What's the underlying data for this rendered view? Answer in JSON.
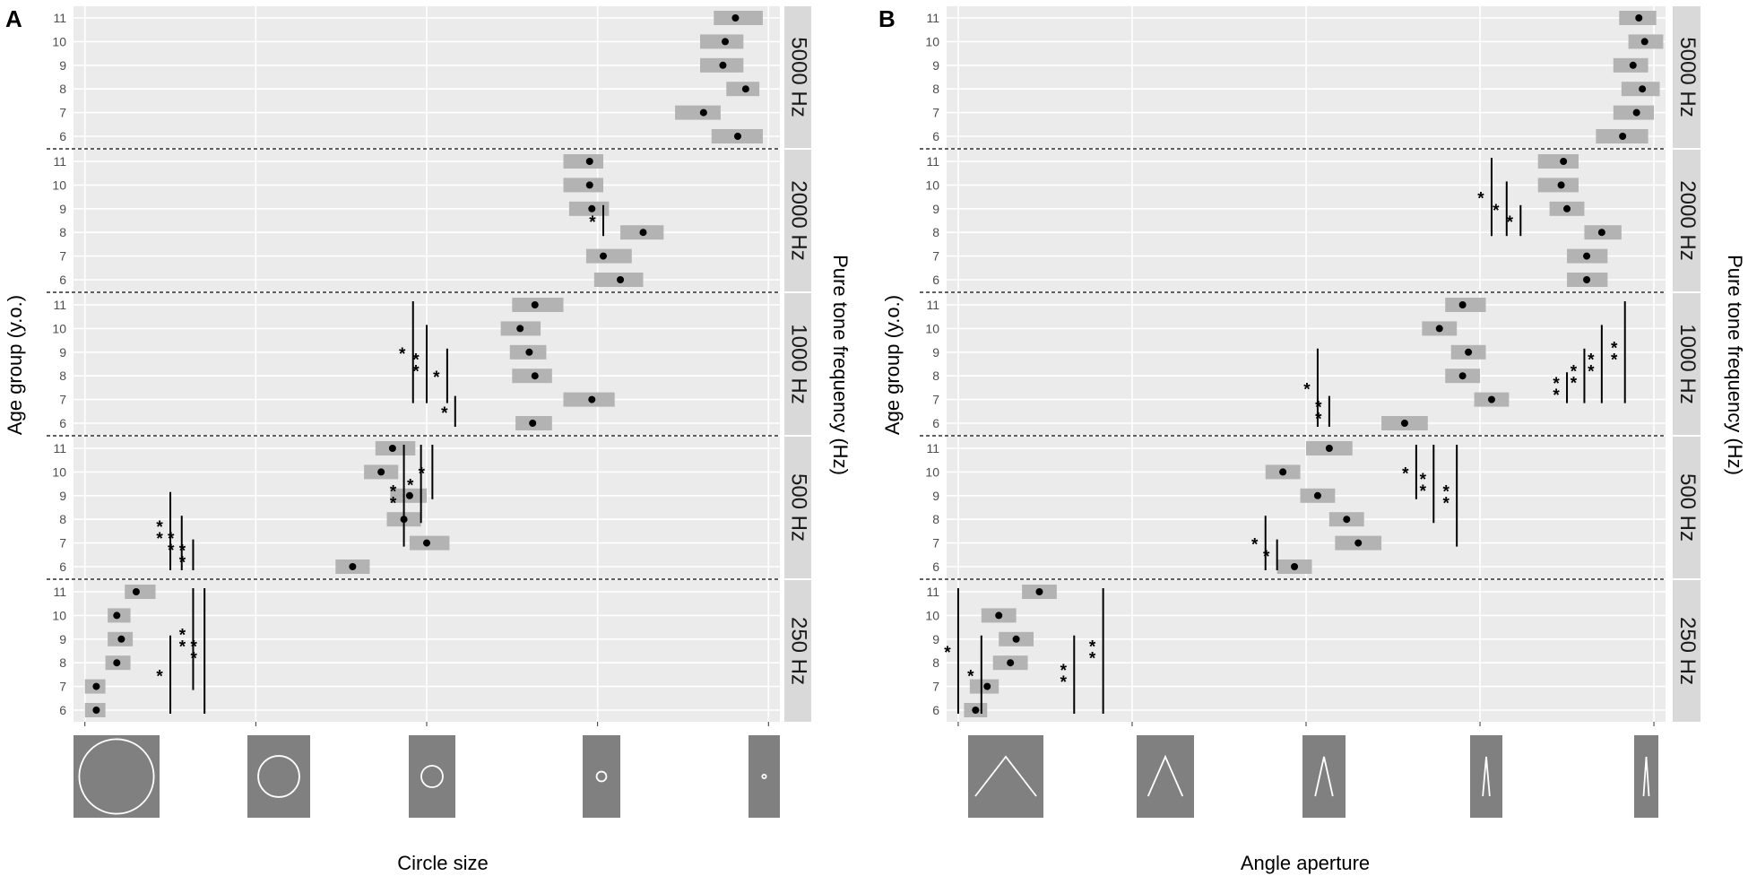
{
  "chart_data": [
    {
      "type": "range",
      "panel_label": "A",
      "xlabel": "Circle size",
      "ylabel": "Age group (y.o.)",
      "facet_label": "Pure tone frequency (Hz)",
      "x_range": [
        0,
        6.2
      ],
      "age_groups": [
        "6",
        "7",
        "8",
        "9",
        "10",
        "11"
      ],
      "stimuli": [
        {
          "kind": "circle",
          "level": 0.55
        },
        {
          "kind": "circle",
          "level": 2.6
        },
        {
          "kind": "circle",
          "level": 4.55
        },
        {
          "kind": "circle",
          "level": 6.8
        },
        {
          "kind": "circle",
          "level": 8.4
        }
      ],
      "facets": [
        {
          "label": "5000 Hz",
          "rows": [
            {
              "age": "6",
              "mean": 5.83,
              "lo": 5.6,
              "hi": 6.05
            },
            {
              "age": "7",
              "mean": 5.53,
              "lo": 5.28,
              "hi": 5.68
            },
            {
              "age": "8",
              "mean": 5.9,
              "lo": 5.73,
              "hi": 6.02
            },
            {
              "age": "9",
              "mean": 5.7,
              "lo": 5.5,
              "hi": 5.88
            },
            {
              "age": "10",
              "mean": 5.72,
              "lo": 5.5,
              "hi": 5.88
            },
            {
              "age": "11",
              "mean": 5.81,
              "lo": 5.62,
              "hi": 6.05
            }
          ],
          "sig": []
        },
        {
          "label": "2000 Hz",
          "rows": [
            {
              "age": "6",
              "mean": 4.8,
              "lo": 4.57,
              "hi": 5.0
            },
            {
              "age": "7",
              "mean": 4.65,
              "lo": 4.5,
              "hi": 4.9
            },
            {
              "age": "8",
              "mean": 5.0,
              "lo": 4.8,
              "hi": 5.18
            },
            {
              "age": "9",
              "mean": 4.55,
              "lo": 4.35,
              "hi": 4.7
            },
            {
              "age": "10",
              "mean": 4.53,
              "lo": 4.3,
              "hi": 4.65
            },
            {
              "age": "11",
              "mean": 4.53,
              "lo": 4.3,
              "hi": 4.65
            }
          ],
          "sig": [
            {
              "from": "8",
              "to": "9",
              "x": 4.65,
              "label": "*"
            }
          ]
        },
        {
          "label": "1000 Hz",
          "rows": [
            {
              "age": "6",
              "mean": 4.03,
              "lo": 3.88,
              "hi": 4.2
            },
            {
              "age": "7",
              "mean": 4.55,
              "lo": 4.3,
              "hi": 4.75
            },
            {
              "age": "8",
              "mean": 4.05,
              "lo": 3.85,
              "hi": 4.2
            },
            {
              "age": "9",
              "mean": 4.0,
              "lo": 3.83,
              "hi": 4.15
            },
            {
              "age": "10",
              "mean": 3.92,
              "lo": 3.75,
              "hi": 4.1
            },
            {
              "age": "11",
              "mean": 4.05,
              "lo": 3.85,
              "hi": 4.3
            }
          ],
          "sig": [
            {
              "from": "6",
              "to": "7",
              "x": 3.35,
              "label": "*"
            },
            {
              "from": "7",
              "to": "9",
              "x": 3.28,
              "label": "*"
            },
            {
              "from": "7",
              "to": "10",
              "x": 3.1,
              "label": "**"
            },
            {
              "from": "7",
              "to": "11",
              "x": 2.98,
              "label": "*"
            }
          ]
        },
        {
          "label": "500 Hz",
          "rows": [
            {
              "age": "6",
              "mean": 2.45,
              "lo": 2.3,
              "hi": 2.6
            },
            {
              "age": "7",
              "mean": 3.1,
              "lo": 2.95,
              "hi": 3.3
            },
            {
              "age": "8",
              "mean": 2.9,
              "lo": 2.75,
              "hi": 3.05
            },
            {
              "age": "9",
              "mean": 2.95,
              "lo": 2.78,
              "hi": 3.1
            },
            {
              "age": "10",
              "mean": 2.7,
              "lo": 2.55,
              "hi": 2.85
            },
            {
              "age": "11",
              "mean": 2.8,
              "lo": 2.65,
              "hi": 3.0
            }
          ],
          "sig": [
            {
              "from": "6",
              "to": "7",
              "x": 1.05,
              "label": "**"
            },
            {
              "from": "6",
              "to": "8",
              "x": 0.95,
              "label": "**"
            },
            {
              "from": "6",
              "to": "9",
              "x": 0.85,
              "label": "**"
            },
            {
              "from": "9",
              "to": "11",
              "x": 3.15,
              "label": "*"
            },
            {
              "from": "8",
              "to": "11",
              "x": 3.05,
              "label": "*"
            },
            {
              "from": "7",
              "to": "11",
              "x": 2.9,
              "label": "**"
            }
          ]
        },
        {
          "label": "250 Hz",
          "rows": [
            {
              "age": "6",
              "mean": 0.2,
              "lo": 0.1,
              "hi": 0.28
            },
            {
              "age": "7",
              "mean": 0.2,
              "lo": 0.1,
              "hi": 0.28
            },
            {
              "age": "8",
              "mean": 0.38,
              "lo": 0.28,
              "hi": 0.5
            },
            {
              "age": "9",
              "mean": 0.42,
              "lo": 0.3,
              "hi": 0.52
            },
            {
              "age": "10",
              "mean": 0.38,
              "lo": 0.3,
              "hi": 0.5
            },
            {
              "age": "11",
              "mean": 0.55,
              "lo": 0.45,
              "hi": 0.72
            }
          ],
          "sig": [
            {
              "from": "6",
              "to": "9",
              "x": 0.85,
              "label": "*"
            },
            {
              "from": "7",
              "to": "11",
              "x": 1.05,
              "label": "**"
            },
            {
              "from": "6",
              "to": "11",
              "x": 1.15,
              "label": "**"
            }
          ]
        }
      ]
    },
    {
      "type": "range",
      "panel_label": "B",
      "xlabel": "Angle aperture",
      "ylabel": "Age group (y.o.)",
      "facet_label": "Pure tone frequency (Hz)",
      "x_range": [
        0,
        6.2
      ],
      "age_groups": [
        "6",
        "7",
        "8",
        "9",
        "10",
        "11"
      ],
      "stimuli": [
        {
          "kind": "angle",
          "level": 0.55
        },
        {
          "kind": "angle",
          "level": 2.6
        },
        {
          "kind": "angle",
          "level": 4.55
        },
        {
          "kind": "angle",
          "level": 6.8
        },
        {
          "kind": "angle",
          "level": 8.4
        }
      ],
      "facets": [
        {
          "label": "5000 Hz",
          "rows": [
            {
              "age": "6",
              "mean": 5.83,
              "lo": 5.6,
              "hi": 6.05
            },
            {
              "age": "7",
              "mean": 5.95,
              "lo": 5.75,
              "hi": 6.1
            },
            {
              "age": "8",
              "mean": 6.0,
              "lo": 5.82,
              "hi": 6.15
            },
            {
              "age": "9",
              "mean": 5.92,
              "lo": 5.75,
              "hi": 6.05
            },
            {
              "age": "10",
              "mean": 6.02,
              "lo": 5.88,
              "hi": 6.18
            },
            {
              "age": "11",
              "mean": 5.97,
              "lo": 5.8,
              "hi": 6.12
            }
          ],
          "sig": []
        },
        {
          "label": "2000 Hz",
          "rows": [
            {
              "age": "6",
              "mean": 5.52,
              "lo": 5.35,
              "hi": 5.7
            },
            {
              "age": "7",
              "mean": 5.52,
              "lo": 5.35,
              "hi": 5.7
            },
            {
              "age": "8",
              "mean": 5.65,
              "lo": 5.5,
              "hi": 5.82
            },
            {
              "age": "9",
              "mean": 5.35,
              "lo": 5.2,
              "hi": 5.5
            },
            {
              "age": "10",
              "mean": 5.3,
              "lo": 5.1,
              "hi": 5.45
            },
            {
              "age": "11",
              "mean": 5.32,
              "lo": 5.1,
              "hi": 5.45
            }
          ],
          "sig": [
            {
              "from": "8",
              "to": "9",
              "x": 4.95,
              "label": "*"
            },
            {
              "from": "8",
              "to": "10",
              "x": 4.83,
              "label": "*"
            },
            {
              "from": "8",
              "to": "11",
              "x": 4.7,
              "label": "*"
            }
          ]
        },
        {
          "label": "1000 Hz",
          "rows": [
            {
              "age": "6",
              "mean": 3.95,
              "lo": 3.75,
              "hi": 4.15
            },
            {
              "age": "7",
              "mean": 4.7,
              "lo": 4.55,
              "hi": 4.85
            },
            {
              "age": "8",
              "mean": 4.45,
              "lo": 4.3,
              "hi": 4.6
            },
            {
              "age": "9",
              "mean": 4.5,
              "lo": 4.35,
              "hi": 4.65
            },
            {
              "age": "10",
              "mean": 4.25,
              "lo": 4.1,
              "hi": 4.4
            },
            {
              "age": "11",
              "mean": 4.45,
              "lo": 4.3,
              "hi": 4.65
            }
          ],
          "sig": [
            {
              "from": "6",
              "to": "7",
              "x": 3.3,
              "label": "**"
            },
            {
              "from": "6",
              "to": "9",
              "x": 3.2,
              "label": "*"
            },
            {
              "from": "7",
              "to": "8",
              "x": 5.35,
              "label": "**"
            },
            {
              "from": "7",
              "to": "9",
              "x": 5.5,
              "label": "**"
            },
            {
              "from": "7",
              "to": "10",
              "x": 5.65,
              "label": "**"
            },
            {
              "from": "7",
              "to": "11",
              "x": 5.85,
              "label": "**"
            }
          ]
        },
        {
          "label": "500 Hz",
          "rows": [
            {
              "age": "6",
              "mean": 3.0,
              "lo": 2.85,
              "hi": 3.15
            },
            {
              "age": "7",
              "mean": 3.55,
              "lo": 3.35,
              "hi": 3.75
            },
            {
              "age": "8",
              "mean": 3.45,
              "lo": 3.3,
              "hi": 3.6
            },
            {
              "age": "9",
              "mean": 3.2,
              "lo": 3.05,
              "hi": 3.35
            },
            {
              "age": "10",
              "mean": 2.9,
              "lo": 2.75,
              "hi": 3.05
            },
            {
              "age": "11",
              "mean": 3.3,
              "lo": 3.1,
              "hi": 3.5
            }
          ],
          "sig": [
            {
              "from": "6",
              "to": "7",
              "x": 2.85,
              "label": "*"
            },
            {
              "from": "6",
              "to": "8",
              "x": 2.75,
              "label": "*"
            },
            {
              "from": "9",
              "to": "11",
              "x": 4.05,
              "label": "*"
            },
            {
              "from": "8",
              "to": "11",
              "x": 4.2,
              "label": "**"
            },
            {
              "from": "7",
              "to": "11",
              "x": 4.4,
              "label": "**"
            }
          ]
        },
        {
          "label": "250 Hz",
          "rows": [
            {
              "age": "6",
              "mean": 0.25,
              "lo": 0.15,
              "hi": 0.35
            },
            {
              "age": "7",
              "mean": 0.35,
              "lo": 0.2,
              "hi": 0.45
            },
            {
              "age": "8",
              "mean": 0.55,
              "lo": 0.4,
              "hi": 0.7
            },
            {
              "age": "9",
              "mean": 0.6,
              "lo": 0.45,
              "hi": 0.75
            },
            {
              "age": "10",
              "mean": 0.45,
              "lo": 0.3,
              "hi": 0.6
            },
            {
              "age": "11",
              "mean": 0.8,
              "lo": 0.65,
              "hi": 0.95
            }
          ],
          "sig": [
            {
              "from": "6",
              "to": "9",
              "x": 0.3,
              "label": "*"
            },
            {
              "from": "6",
              "to": "11",
              "x": 0.1,
              "label": "*"
            },
            {
              "from": "6",
              "to": "9",
              "x": 1.1,
              "label": "**"
            },
            {
              "from": "6",
              "to": "11",
              "x": 1.35,
              "label": "**"
            }
          ]
        }
      ]
    }
  ]
}
